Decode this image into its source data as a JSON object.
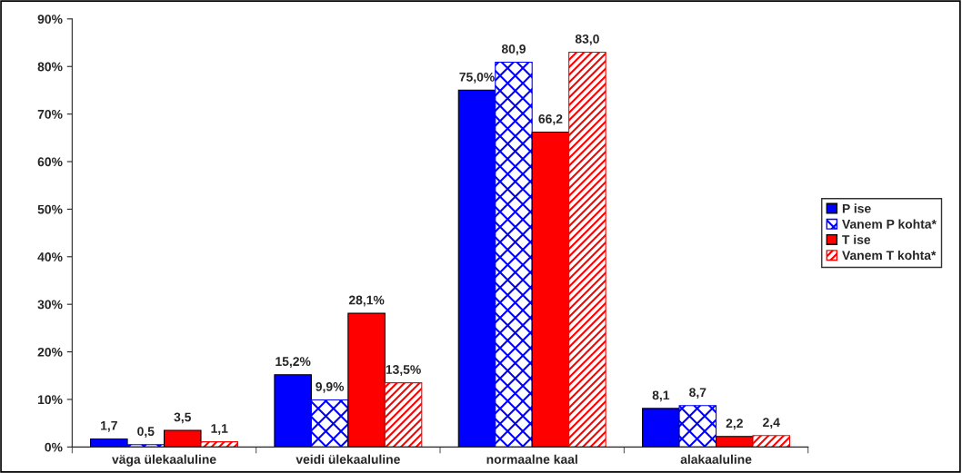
{
  "chart_data": {
    "type": "bar",
    "categories": [
      "väga ülekaaluline",
      "veidi ülekaaluline",
      "normaalne kaal",
      "alakaaluline"
    ],
    "series": [
      {
        "name": "P ise",
        "color": "#0000ff",
        "values": [
          1.7,
          15.2,
          75.0,
          8.1
        ],
        "value_labels": [
          "1,7",
          "15,2%",
          "75,0%",
          "8,1"
        ]
      },
      {
        "name": "Vanem P kohta*",
        "color": "#0000ff",
        "values": [
          0.5,
          9.9,
          80.9,
          8.7
        ],
        "value_labels": [
          "0,5",
          "9,9%",
          "80,9",
          "8,7"
        ]
      },
      {
        "name": "T ise",
        "color": "#ff0000",
        "values": [
          3.5,
          28.1,
          66.2,
          2.2
        ],
        "value_labels": [
          "3,5",
          "28,1%",
          "66,2",
          "2,2"
        ]
      },
      {
        "name": "Vanem T kohta*",
        "color": "#ff0000",
        "values": [
          1.1,
          13.5,
          83.0,
          2.4
        ],
        "value_labels": [
          "1,1",
          "13,5%",
          "83,0",
          "2,4"
        ]
      }
    ],
    "ylim": [
      0,
      90
    ],
    "yticks": [
      {
        "value": 0,
        "label": "0%"
      },
      {
        "value": 10,
        "label": "10%"
      },
      {
        "value": 20,
        "label": "20%"
      },
      {
        "value": 30,
        "label": "30%"
      },
      {
        "value": 40,
        "label": "40%"
      },
      {
        "value": 50,
        "label": "50%"
      },
      {
        "value": 60,
        "label": "60%"
      },
      {
        "value": 70,
        "label": "70%"
      },
      {
        "value": 80,
        "label": "80%"
      },
      {
        "value": 90,
        "label": "90%"
      }
    ],
    "legend": "right"
  }
}
